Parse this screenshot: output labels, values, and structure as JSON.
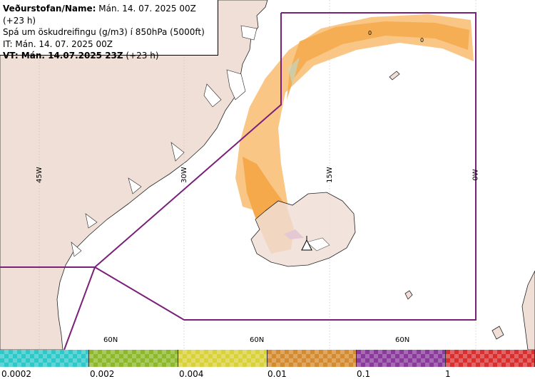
{
  "header": {
    "line1_bold": "Veðurstofan/Name:",
    "line1_rest": " Mán. 14. 07. 2025 00Z (+23 h)",
    "line2": "Spá um öskudreifingu (g/m3) í 850hPa (5000ft)",
    "line3": "IT: Mán. 14. 07. 2025 00Z",
    "line4_bold": "VT: Mán. 14.07.2025 23Z",
    "line4_rest": " (+23 h)"
  },
  "grid_labels": {
    "lon_45w": "45W",
    "lon_30w": "30W",
    "lon_15w": "15W",
    "lon_0w": "0W",
    "lat_60n_a": "60N",
    "lat_60n_b": "60N",
    "lat_60n_c": "60N"
  },
  "plume_markers": {
    "a": "0",
    "b": "0"
  },
  "legend": {
    "colors": [
      "#2ec8c8",
      "#8cb82a",
      "#d8d23a",
      "#d48a2e",
      "#8a3a9a",
      "#d83030"
    ],
    "ticks": [
      "0.0002",
      "0.002",
      "0.004",
      "0.01",
      "0.1",
      "1"
    ]
  },
  "colors": {
    "land": "#f0dfd6",
    "sea": "#ffffff",
    "boundary": "#7a1f7a",
    "plume_light": "#f8c078",
    "plume_main": "#f5a94a",
    "plume_purple": "#a04ab8"
  },
  "icons": {
    "volcano": "volcano-icon"
  }
}
